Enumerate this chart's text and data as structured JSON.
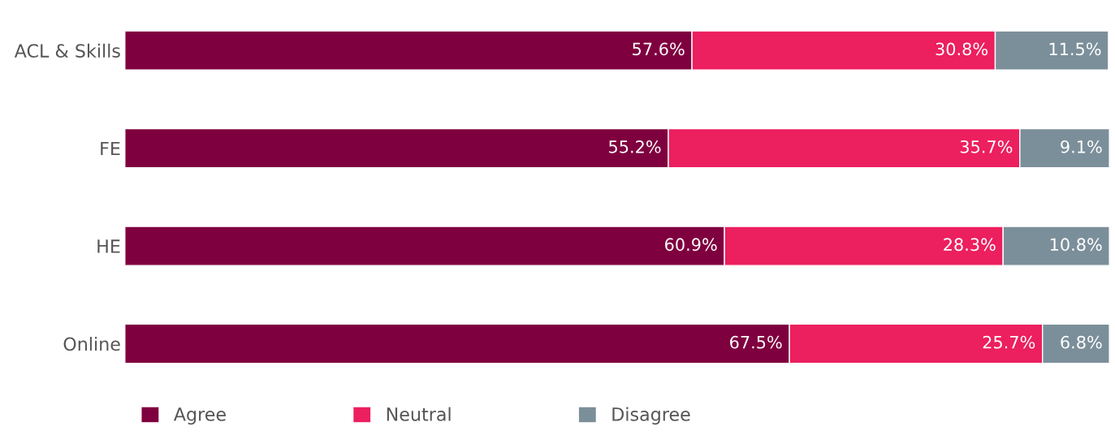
{
  "chart_data": {
    "type": "bar",
    "orientation": "horizontal",
    "stacked": true,
    "legend": "bottom",
    "grid": false,
    "categories": [
      "ACL & Skills",
      "FE",
      "HE",
      "Online"
    ],
    "series": [
      {
        "name": "Agree",
        "color": "#7f003f",
        "values": [
          57.6,
          55.2,
          60.9,
          67.5
        ],
        "value_labels": [
          "57.6%",
          "55.2%",
          "60.9%",
          "67.5%"
        ]
      },
      {
        "name": "Neutral",
        "color": "#ec1f5f",
        "values": [
          30.8,
          35.7,
          28.3,
          25.7
        ],
        "value_labels": [
          "30.8%",
          "35.7%",
          "28.3%",
          "25.7%"
        ]
      },
      {
        "name": "Disagree",
        "color": "#7b8f9a",
        "values": [
          11.5,
          9.1,
          10.8,
          6.8
        ],
        "value_labels": [
          "11.5%",
          "9.1%",
          "10.8%",
          "6.8%"
        ]
      }
    ]
  }
}
